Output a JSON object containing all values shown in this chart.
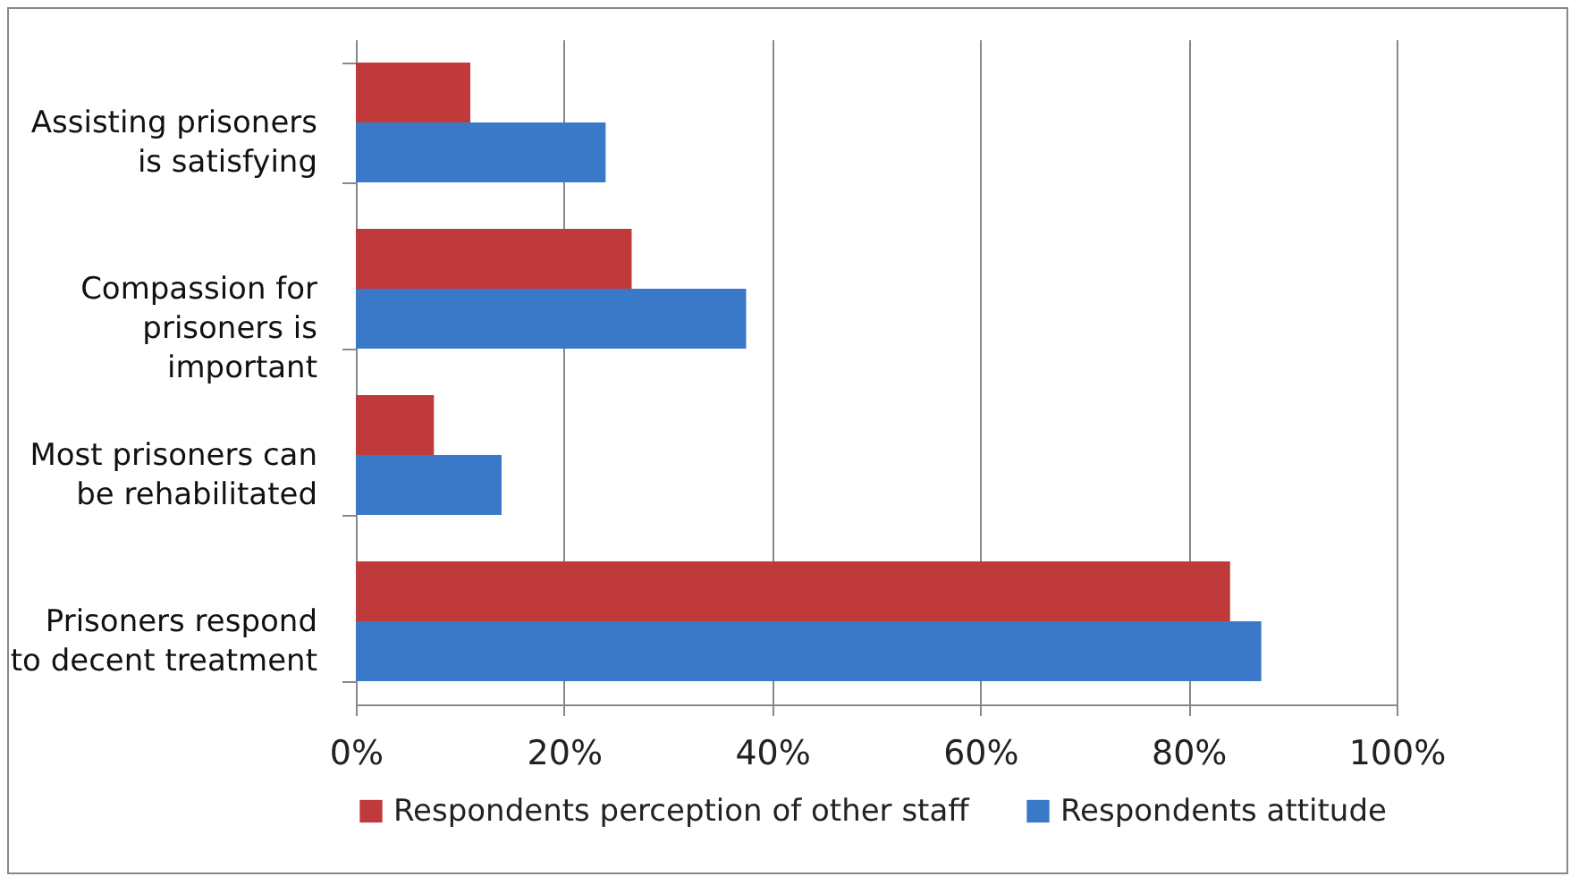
{
  "chart_data": {
    "type": "bar",
    "orientation": "horizontal",
    "categories": [
      "Assisting prisoners is satisfying",
      "Compassion for prisoners is important",
      "Most prisoners can be rehabilitated",
      "Prisoners respond to decent treatment"
    ],
    "series": [
      {
        "name": "Respondents perception of other staff",
        "color": "#c0393b",
        "values": [
          11,
          26.5,
          7.5,
          84
        ]
      },
      {
        "name": "Respondents attitude",
        "color": "#3a78c8",
        "values": [
          24,
          37.5,
          14,
          87
        ]
      }
    ],
    "xlim": [
      0,
      100
    ],
    "xticks": [
      {
        "value": 0,
        "label": "0%"
      },
      {
        "value": 20,
        "label": "20%"
      },
      {
        "value": 40,
        "label": "40%"
      },
      {
        "value": 60,
        "label": "60%"
      },
      {
        "value": 80,
        "label": "80%"
      },
      {
        "value": 100,
        "label": "100%"
      }
    ],
    "grid": "x",
    "legend": "bottom"
  }
}
